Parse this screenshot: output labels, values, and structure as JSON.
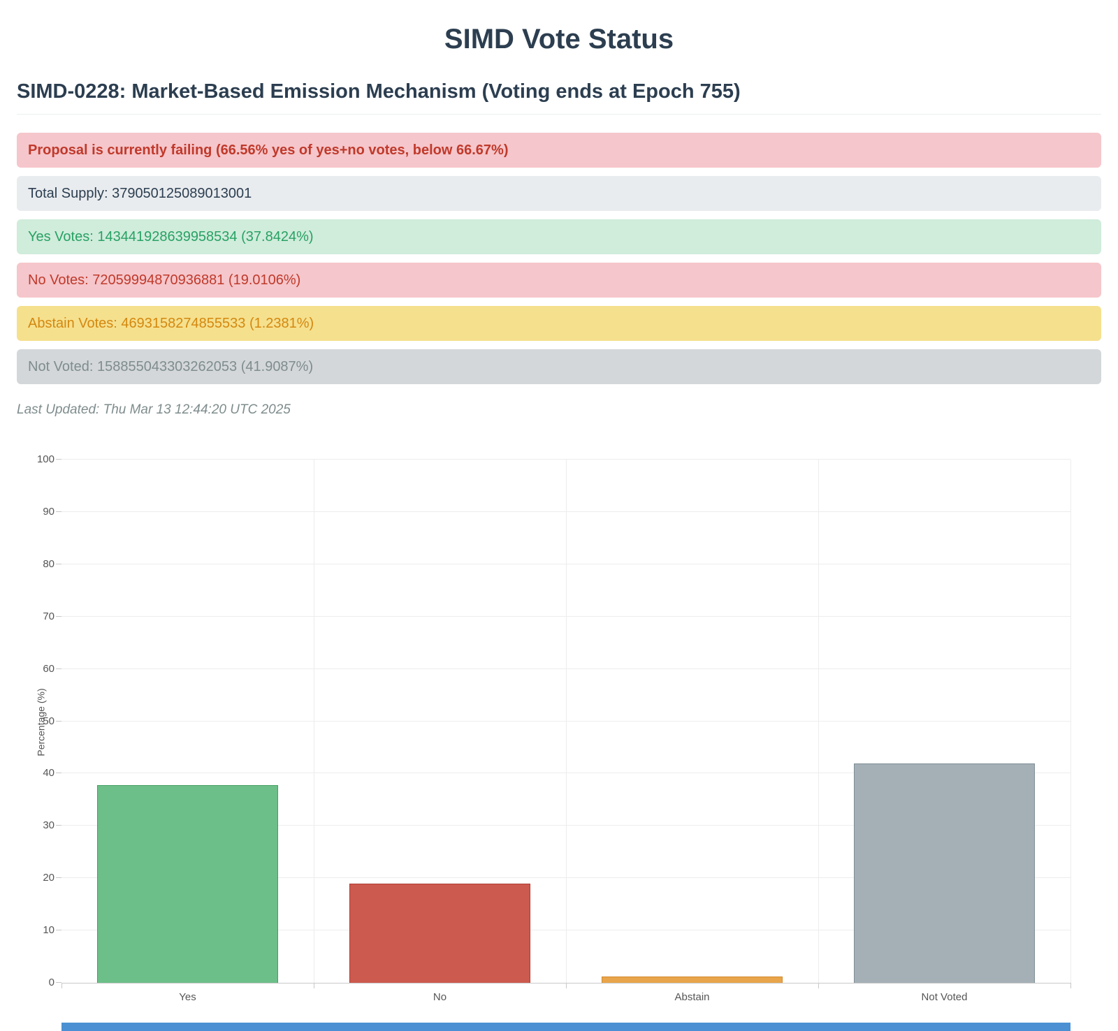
{
  "page": {
    "title": "SIMD Vote Status"
  },
  "proposal": {
    "heading": "SIMD-0228: Market-Based Emission Mechanism (Voting ends at Epoch 755)"
  },
  "banners": [
    {
      "id": "failing",
      "text": "Proposal is currently failing (66.56% yes of yes+no votes, below 66.67%)",
      "bg": "#f5c6cb",
      "text_color": "#c0392b",
      "bold": true
    },
    {
      "id": "total-supply",
      "text": "Total Supply: 379050125089013001",
      "bg": "#e9ecef",
      "text_color": "#2c3e50",
      "bold": false
    },
    {
      "id": "yes-votes",
      "text": "Yes Votes: 143441928639958534 (37.8424%)",
      "bg": "#d0ecdb",
      "text_color": "#28a164",
      "bold": false
    },
    {
      "id": "no-votes",
      "text": "No Votes: 72059994870936881 (19.0106%)",
      "bg": "#f5c6cb",
      "text_color": "#c0392b",
      "bold": false
    },
    {
      "id": "abstain-votes",
      "text": "Abstain Votes: 4693158274855533 (1.2381%)",
      "bg": "#f5e08e",
      "text_color": "#d4880f",
      "bold": false
    },
    {
      "id": "not-voted",
      "text": "Not Voted: 158855043303262053 (41.9087%)",
      "bg": "#d3d7da",
      "text_color": "#7f8c8d",
      "bold": false
    }
  ],
  "last_updated": "Last Updated: Thu Mar 13 12:44:20 UTC 2025",
  "chart_data": {
    "type": "bar",
    "title": "",
    "xlabel": "",
    "ylabel": "Percentage (%)",
    "categories": [
      "Yes",
      "No",
      "Abstain",
      "Not Voted"
    ],
    "values": [
      37.8424,
      19.0106,
      1.2381,
      41.9087
    ],
    "bar_colors": [
      "#6cbf88",
      "#cd5a4e",
      "#e9a54b",
      "#a5b0b6"
    ],
    "bar_border_colors": [
      "#43a065",
      "#ae3c31",
      "#d2882a",
      "#7f8d95"
    ],
    "ylim": [
      0,
      100
    ],
    "ytick_step": 10,
    "grid": true,
    "legend": "none"
  },
  "bottom_partial_element": {
    "color": "#4a90d2"
  }
}
